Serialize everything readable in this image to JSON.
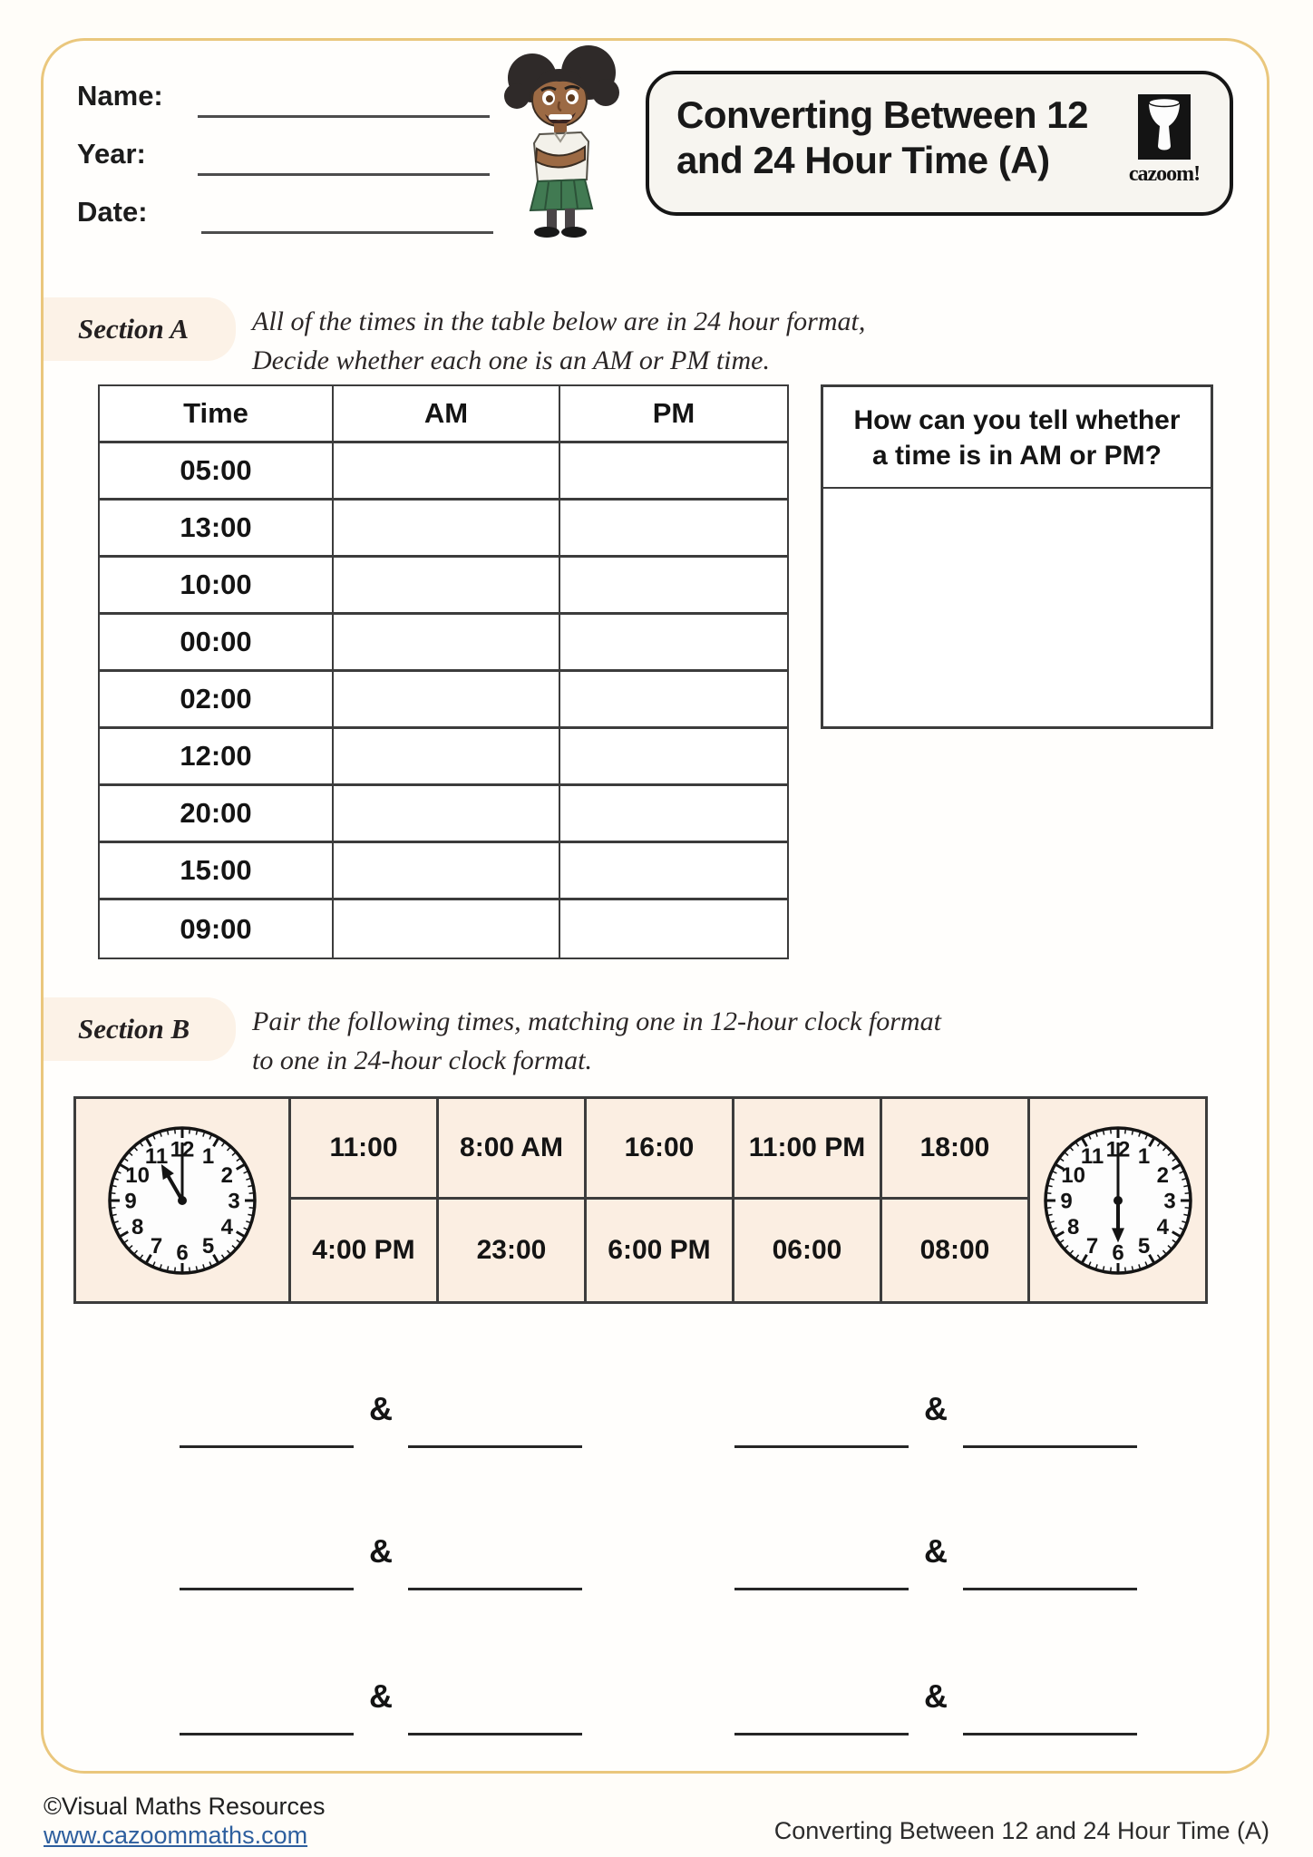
{
  "header": {
    "name_label": "Name:",
    "year_label": "Year:",
    "date_label": "Date:"
  },
  "title_box": {
    "line1": "Converting Between 12",
    "line2": "and 24 Hour Time (A)",
    "logo_text": "cazoom!",
    "logo_icon": "djembe-drum-icon"
  },
  "section_a": {
    "label": "Section A",
    "instruction_line1": "All of the times in the table below are in 24 hour format,",
    "instruction_line2": "Decide whether each one is an AM or PM time.",
    "table": {
      "headers": [
        "Time",
        "AM",
        "PM"
      ],
      "times": [
        "05:00",
        "13:00",
        "10:00",
        "00:00",
        "02:00",
        "12:00",
        "20:00",
        "15:00",
        "09:00"
      ]
    },
    "hint_box": {
      "question_line1": "How can you tell whether",
      "question_line2": "a time is in AM or PM?"
    }
  },
  "section_b": {
    "label": "Section B",
    "instruction_line1": "Pair the following times, matching one in 12-hour clock format",
    "instruction_line2": "to one in 24-hour clock format.",
    "ampersand": "&",
    "times_row1": [
      "11:00",
      "8:00 AM",
      "16:00",
      "11:00 PM",
      "18:00"
    ],
    "times_row2": [
      "4:00 PM",
      "23:00",
      "6:00 PM",
      "06:00",
      "08:00"
    ],
    "clocks": [
      {
        "position": "left",
        "time": "11:00"
      },
      {
        "position": "right",
        "time": "6:00"
      }
    ]
  },
  "footer": {
    "copyright": "©Visual Maths Resources",
    "website": "www.cazoommaths.com",
    "worksheet_title": "Converting Between 12 and 24 Hour Time (A)"
  },
  "colors": {
    "page_border": "#eac77d",
    "section_label_bg": "#fcf2e7",
    "table_b_bg": "#fbeee2",
    "link_blue": "#2e5f9e"
  }
}
